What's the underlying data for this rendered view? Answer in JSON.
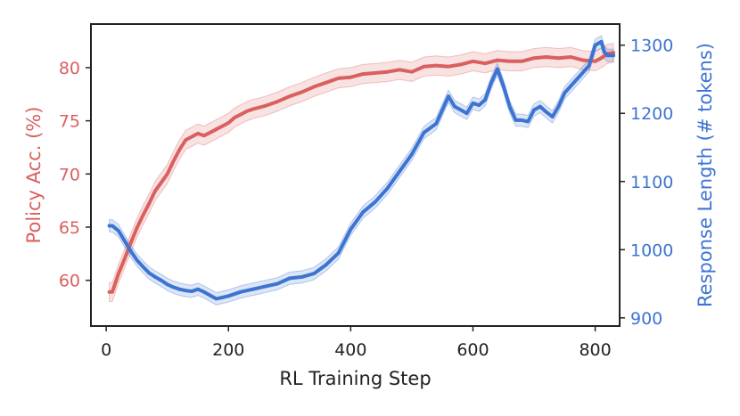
{
  "chart_data": {
    "type": "line",
    "xlabel": "RL Training Step",
    "ylabel_left": "Policy Acc. (%)",
    "ylabel_right": "Response Length (# tokens)",
    "xlim": [
      -25,
      840
    ],
    "ylim_left": [
      55.7,
      84.1
    ],
    "ylim_right": [
      888,
      1331
    ],
    "x_ticks": [
      0,
      200,
      400,
      600,
      800
    ],
    "x_tick_labels": [
      "0",
      "200",
      "400",
      "600",
      "800"
    ],
    "y_left_ticks": [
      60,
      65,
      70,
      75,
      80
    ],
    "y_left_tick_labels": [
      "60",
      "65",
      "70",
      "75",
      "80"
    ],
    "y_right_ticks": [
      900,
      1000,
      1100,
      1200,
      1300
    ],
    "y_right_tick_labels": [
      "900",
      "1000",
      "1100",
      "1200",
      "1300"
    ],
    "grid": false,
    "colors": {
      "accuracy": "#d9605f",
      "length": "#3d74d2",
      "frame": "#222222"
    },
    "series": [
      {
        "axis": "left",
        "color": "#d9605f",
        "band": 0.9,
        "x": [
          5,
          10,
          20,
          30,
          40,
          50,
          60,
          70,
          80,
          90,
          100,
          110,
          120,
          130,
          140,
          150,
          160,
          170,
          180,
          190,
          200,
          210,
          220,
          230,
          240,
          260,
          280,
          300,
          320,
          340,
          360,
          380,
          400,
          420,
          440,
          460,
          480,
          500,
          520,
          540,
          560,
          580,
          600,
          620,
          640,
          660,
          680,
          700,
          720,
          740,
          760,
          780,
          800,
          810,
          820,
          830
        ],
        "values": [
          58.9,
          58.9,
          60.6,
          62.0,
          63.5,
          64.9,
          66.1,
          67.2,
          68.4,
          69.2,
          70.0,
          71.2,
          72.3,
          73.2,
          73.5,
          73.8,
          73.6,
          73.9,
          74.2,
          74.5,
          74.8,
          75.3,
          75.6,
          75.9,
          76.1,
          76.4,
          76.8,
          77.3,
          77.7,
          78.2,
          78.6,
          79.0,
          79.1,
          79.4,
          79.5,
          79.6,
          79.8,
          79.6,
          80.1,
          80.2,
          80.1,
          80.3,
          80.6,
          80.4,
          80.7,
          80.6,
          80.6,
          80.9,
          81.0,
          80.9,
          81.0,
          80.7,
          80.6,
          80.9,
          81.3,
          81.4
        ]
      },
      {
        "axis": "right",
        "color": "#3d74d2",
        "band": 9,
        "x": [
          5,
          10,
          20,
          30,
          40,
          50,
          60,
          70,
          80,
          90,
          100,
          110,
          120,
          130,
          140,
          150,
          160,
          170,
          180,
          190,
          200,
          220,
          240,
          260,
          280,
          300,
          320,
          340,
          360,
          380,
          400,
          420,
          440,
          460,
          480,
          500,
          520,
          540,
          560,
          570,
          580,
          590,
          600,
          610,
          620,
          630,
          640,
          650,
          660,
          670,
          680,
          690,
          700,
          710,
          720,
          730,
          740,
          750,
          760,
          770,
          780,
          790,
          800,
          810,
          815,
          820,
          830
        ],
        "values": [
          1035,
          1035,
          1028,
          1013,
          998,
          985,
          975,
          966,
          960,
          955,
          949,
          945,
          942,
          940,
          939,
          942,
          938,
          933,
          928,
          930,
          932,
          938,
          942,
          946,
          950,
          958,
          960,
          965,
          978,
          995,
          1030,
          1055,
          1070,
          1090,
          1115,
          1140,
          1172,
          1185,
          1225,
          1210,
          1205,
          1200,
          1215,
          1212,
          1220,
          1245,
          1265,
          1240,
          1210,
          1190,
          1190,
          1188,
          1205,
          1210,
          1202,
          1195,
          1210,
          1230,
          1240,
          1250,
          1260,
          1270,
          1300,
          1305,
          1290,
          1285,
          1285
        ]
      }
    ]
  }
}
